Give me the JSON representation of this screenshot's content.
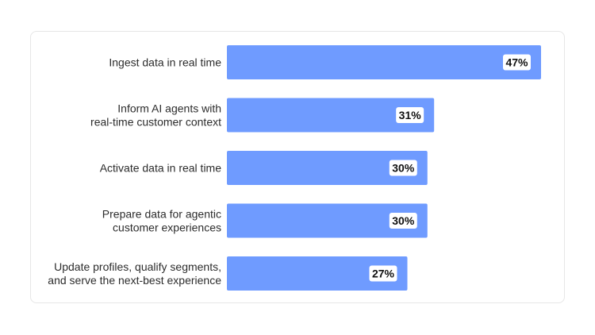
{
  "chart_data": {
    "type": "bar",
    "orientation": "horizontal",
    "categories": [
      [
        "Ingest data in real time"
      ],
      [
        "Inform AI agents with",
        "real-time customer context"
      ],
      [
        "Activate data in real time"
      ],
      [
        "Prepare data for agentic",
        "customer experiences"
      ],
      [
        "Update profiles, qualify segments,",
        "and serve the next-best experience"
      ]
    ],
    "values": [
      47,
      31,
      30,
      30,
      27
    ],
    "value_labels": [
      "47%",
      "31%",
      "30%",
      "30%",
      "27%"
    ],
    "unit": "%",
    "xlim": [
      0,
      47
    ],
    "grid": false,
    "legend": "none",
    "bar_color": "#6f9bff",
    "label_box_color": "#ffffff"
  }
}
